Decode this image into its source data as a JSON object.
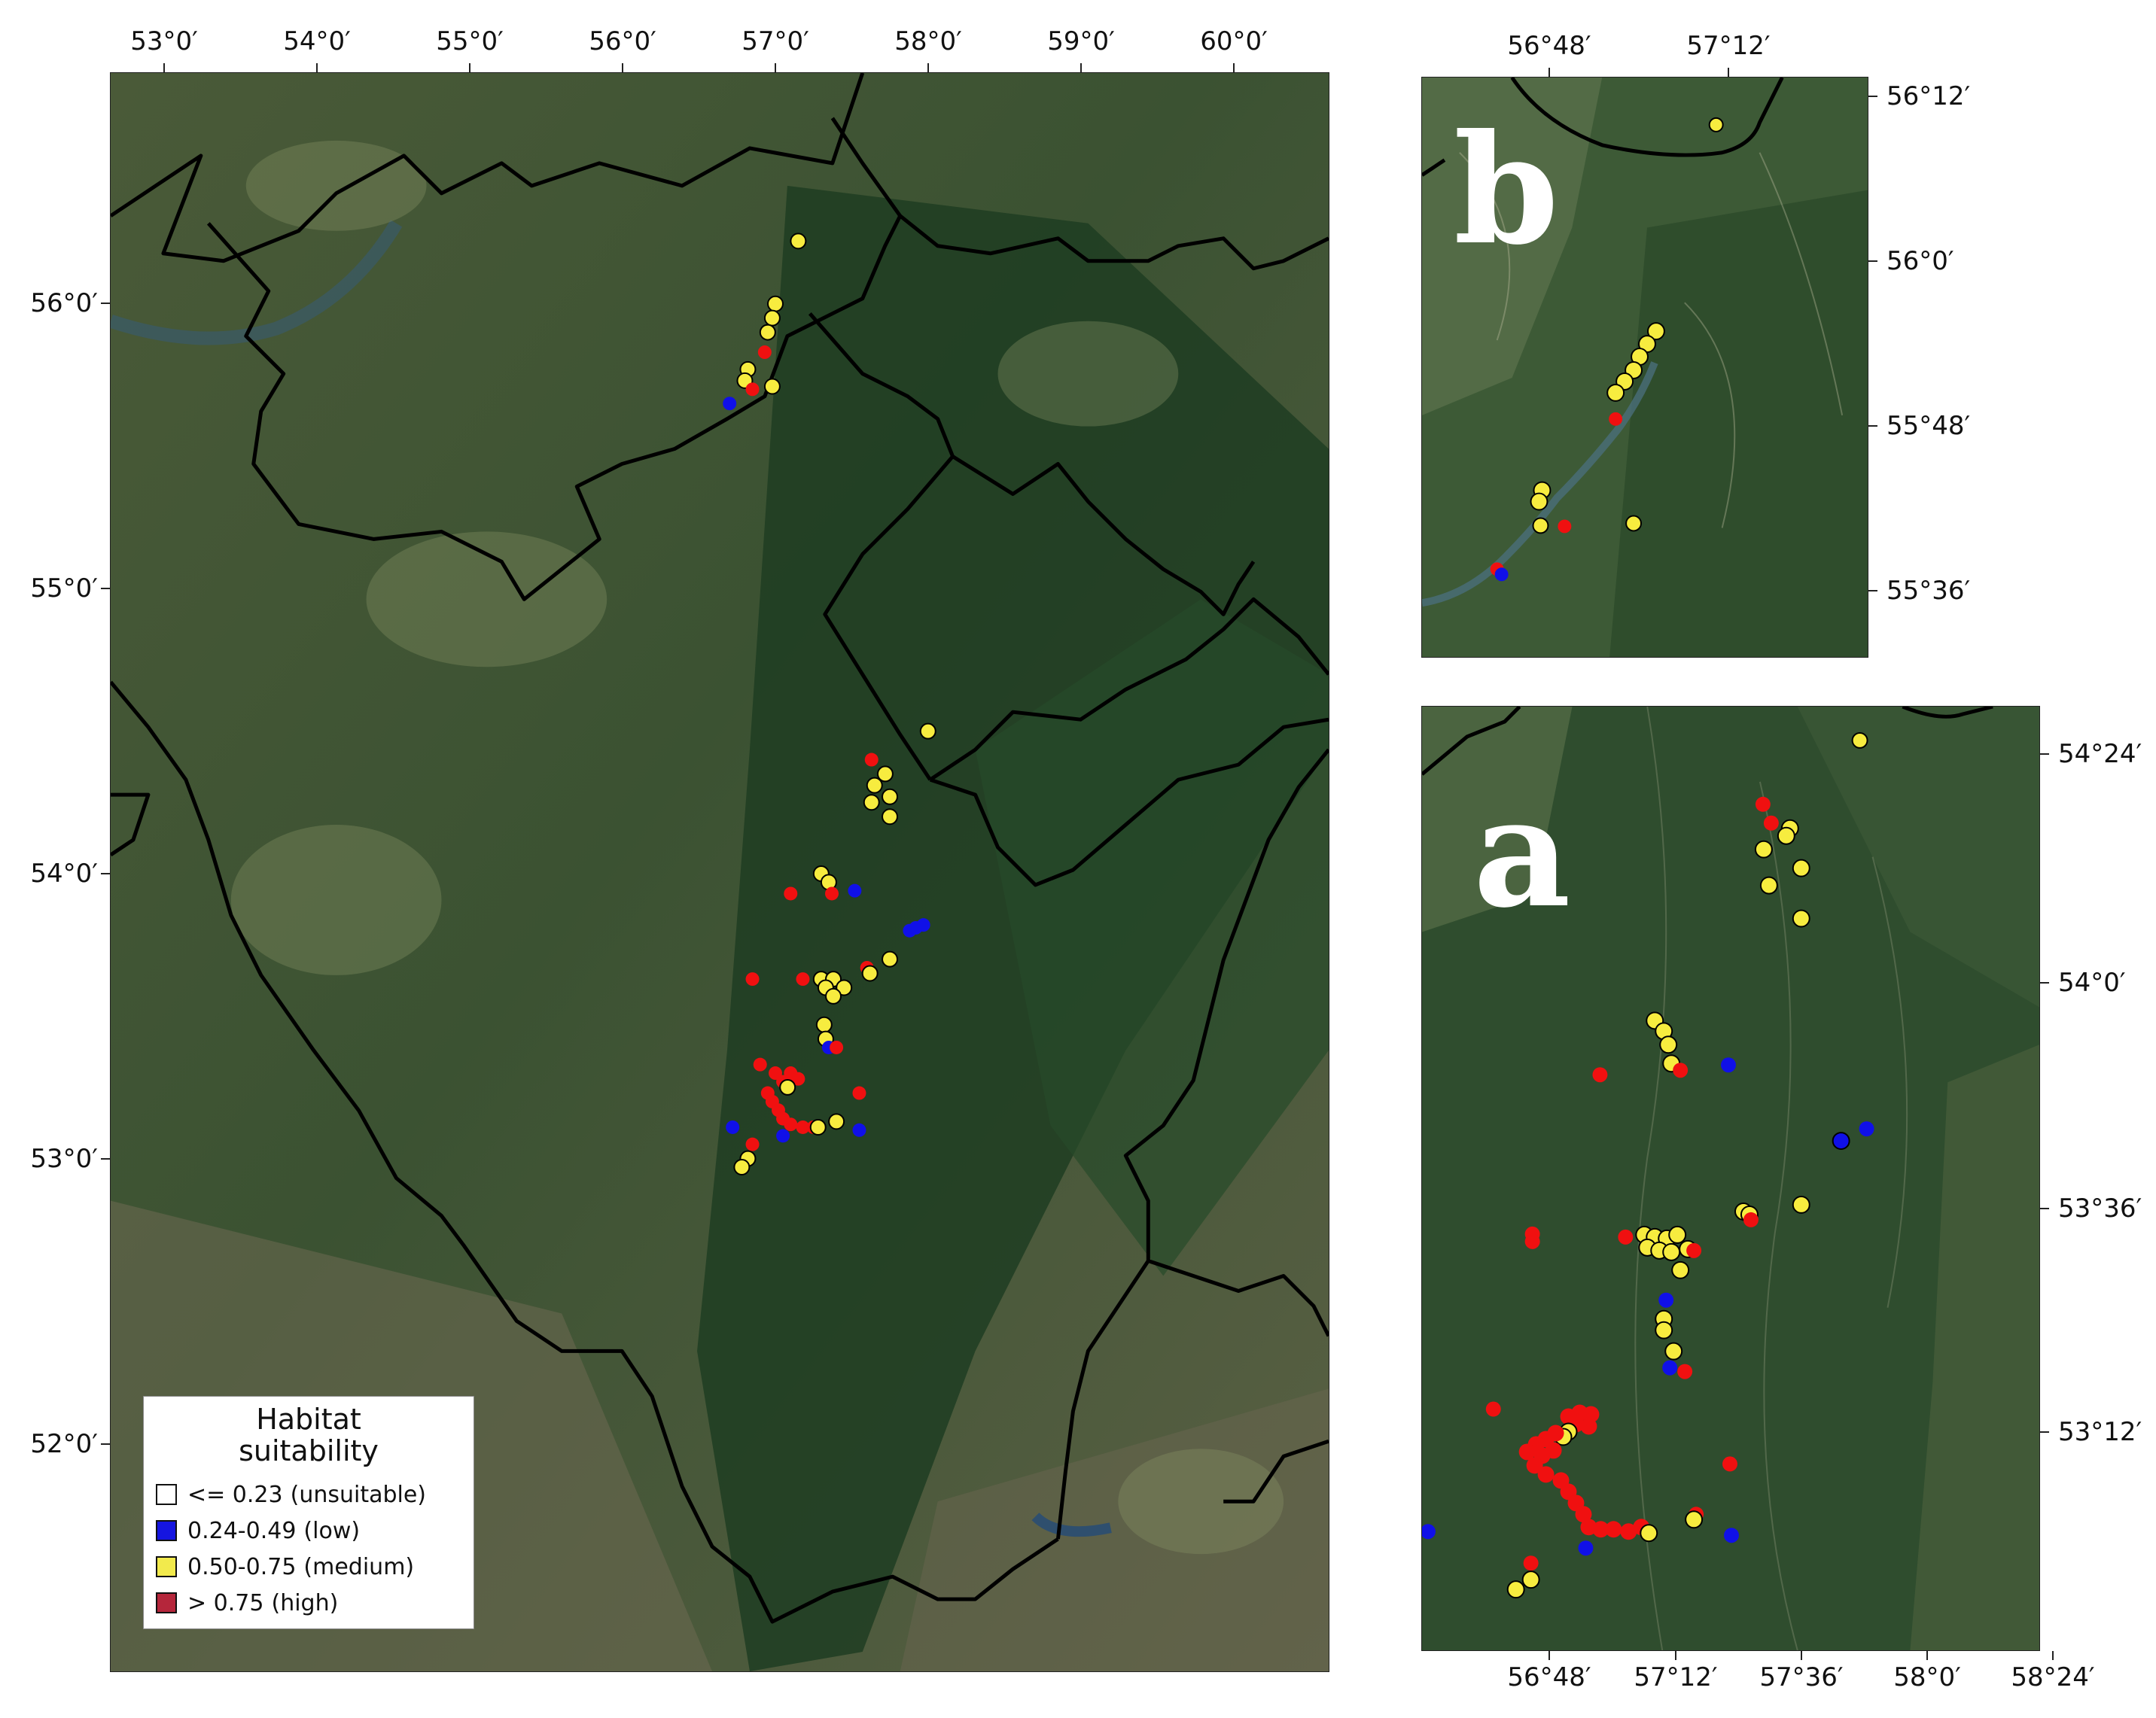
{
  "legend": {
    "title_line1": "Habitat",
    "title_line2": "suitability",
    "items": [
      {
        "range": "<= 0.23",
        "class": "(unsuitable)",
        "color": "#ffffff"
      },
      {
        "range": "0.24-0.49",
        "class": "(low)",
        "color": "#1515e0"
      },
      {
        "range": "0.50-0.75",
        "class": "(medium)",
        "color": "#f2ea4c"
      },
      {
        "range": "> 0.75",
        "class": "(high)",
        "color": "#b5263b"
      }
    ]
  },
  "point_colors": {
    "low": "#1010e8",
    "medium": "#f7ec3f",
    "high": "#f01010"
  },
  "main_map": {
    "lon_ticks": [
      "53°0′",
      "54°0′",
      "55°0′",
      "56°0′",
      "57°0′",
      "58°0′",
      "59°0′",
      "60°0′"
    ],
    "lat_ticks": [
      "56°0′",
      "55°0′",
      "54°0′",
      "53°0′",
      "52°0′"
    ],
    "points": [
      {
        "lon": 57.15,
        "lat": 56.07,
        "class": "medium"
      },
      {
        "lon": 57.0,
        "lat": 55.85,
        "class": "medium"
      },
      {
        "lon": 56.98,
        "lat": 55.8,
        "class": "medium"
      },
      {
        "lon": 56.95,
        "lat": 55.75,
        "class": "medium"
      },
      {
        "lon": 56.93,
        "lat": 55.68,
        "class": "high"
      },
      {
        "lon": 56.82,
        "lat": 55.62,
        "class": "medium"
      },
      {
        "lon": 56.8,
        "lat": 55.58,
        "class": "medium"
      },
      {
        "lon": 56.85,
        "lat": 55.55,
        "class": "high"
      },
      {
        "lon": 56.98,
        "lat": 55.56,
        "class": "medium"
      },
      {
        "lon": 56.7,
        "lat": 55.5,
        "class": "low"
      },
      {
        "lon": 58.0,
        "lat": 54.35,
        "class": "medium"
      },
      {
        "lon": 57.63,
        "lat": 54.25,
        "class": "high"
      },
      {
        "lon": 57.72,
        "lat": 54.2,
        "class": "medium"
      },
      {
        "lon": 57.65,
        "lat": 54.16,
        "class": "medium"
      },
      {
        "lon": 57.75,
        "lat": 54.12,
        "class": "medium"
      },
      {
        "lon": 57.63,
        "lat": 54.1,
        "class": "medium"
      },
      {
        "lon": 57.75,
        "lat": 54.05,
        "class": "medium"
      },
      {
        "lon": 57.3,
        "lat": 53.85,
        "class": "medium"
      },
      {
        "lon": 57.35,
        "lat": 53.82,
        "class": "medium"
      },
      {
        "lon": 57.1,
        "lat": 53.78,
        "class": "high"
      },
      {
        "lon": 57.37,
        "lat": 53.78,
        "class": "high"
      },
      {
        "lon": 57.52,
        "lat": 53.79,
        "class": "low"
      },
      {
        "lon": 57.92,
        "lat": 53.66,
        "class": "low"
      },
      {
        "lon": 57.97,
        "lat": 53.67,
        "class": "low"
      },
      {
        "lon": 57.88,
        "lat": 53.65,
        "class": "low"
      },
      {
        "lon": 56.85,
        "lat": 53.48,
        "class": "high"
      },
      {
        "lon": 57.18,
        "lat": 53.48,
        "class": "high"
      },
      {
        "lon": 57.3,
        "lat": 53.48,
        "class": "medium"
      },
      {
        "lon": 57.38,
        "lat": 53.48,
        "class": "medium"
      },
      {
        "lon": 57.33,
        "lat": 53.45,
        "class": "medium"
      },
      {
        "lon": 57.45,
        "lat": 53.45,
        "class": "medium"
      },
      {
        "lon": 57.38,
        "lat": 53.42,
        "class": "medium"
      },
      {
        "lon": 57.6,
        "lat": 53.52,
        "class": "high"
      },
      {
        "lon": 57.62,
        "lat": 53.5,
        "class": "medium"
      },
      {
        "lon": 57.75,
        "lat": 53.55,
        "class": "medium"
      },
      {
        "lon": 57.32,
        "lat": 53.32,
        "class": "medium"
      },
      {
        "lon": 57.33,
        "lat": 53.27,
        "class": "medium"
      },
      {
        "lon": 57.35,
        "lat": 53.24,
        "class": "low"
      },
      {
        "lon": 57.4,
        "lat": 53.24,
        "class": "high"
      },
      {
        "lon": 56.9,
        "lat": 53.18,
        "class": "high"
      },
      {
        "lon": 57.0,
        "lat": 53.15,
        "class": "high"
      },
      {
        "lon": 57.05,
        "lat": 53.12,
        "class": "high"
      },
      {
        "lon": 57.1,
        "lat": 53.15,
        "class": "high"
      },
      {
        "lon": 57.15,
        "lat": 53.13,
        "class": "high"
      },
      {
        "lon": 57.08,
        "lat": 53.1,
        "class": "medium"
      },
      {
        "lon": 56.95,
        "lat": 53.08,
        "class": "high"
      },
      {
        "lon": 56.98,
        "lat": 53.05,
        "class": "high"
      },
      {
        "lon": 57.02,
        "lat": 53.02,
        "class": "high"
      },
      {
        "lon": 57.05,
        "lat": 52.99,
        "class": "high"
      },
      {
        "lon": 57.1,
        "lat": 52.97,
        "class": "high"
      },
      {
        "lon": 57.18,
        "lat": 52.96,
        "class": "high"
      },
      {
        "lon": 57.25,
        "lat": 52.96,
        "class": "high"
      },
      {
        "lon": 57.28,
        "lat": 52.96,
        "class": "medium"
      },
      {
        "lon": 57.55,
        "lat": 53.08,
        "class": "high"
      },
      {
        "lon": 57.4,
        "lat": 52.98,
        "class": "medium"
      },
      {
        "lon": 57.55,
        "lat": 52.95,
        "class": "low"
      },
      {
        "lon": 56.72,
        "lat": 52.96,
        "class": "low"
      },
      {
        "lon": 57.05,
        "lat": 52.93,
        "class": "low"
      },
      {
        "lon": 56.85,
        "lat": 52.9,
        "class": "high"
      },
      {
        "lon": 56.82,
        "lat": 52.85,
        "class": "medium"
      },
      {
        "lon": 56.78,
        "lat": 52.82,
        "class": "medium"
      }
    ]
  },
  "inset_b": {
    "letter": "b",
    "lon_ticks": [
      "56°48′",
      "57°12′"
    ],
    "lat_ticks": [
      "56°12′",
      "56°0′",
      "55°48′",
      "55°36′"
    ]
  },
  "inset_a": {
    "letter": "a",
    "lon_ticks": [
      "56°48′",
      "57°12′",
      "57°36′",
      "58°0′",
      "58°24′"
    ],
    "lat_ticks": [
      "54°24′",
      "54°0′",
      "53°36′",
      "53°12′"
    ]
  }
}
